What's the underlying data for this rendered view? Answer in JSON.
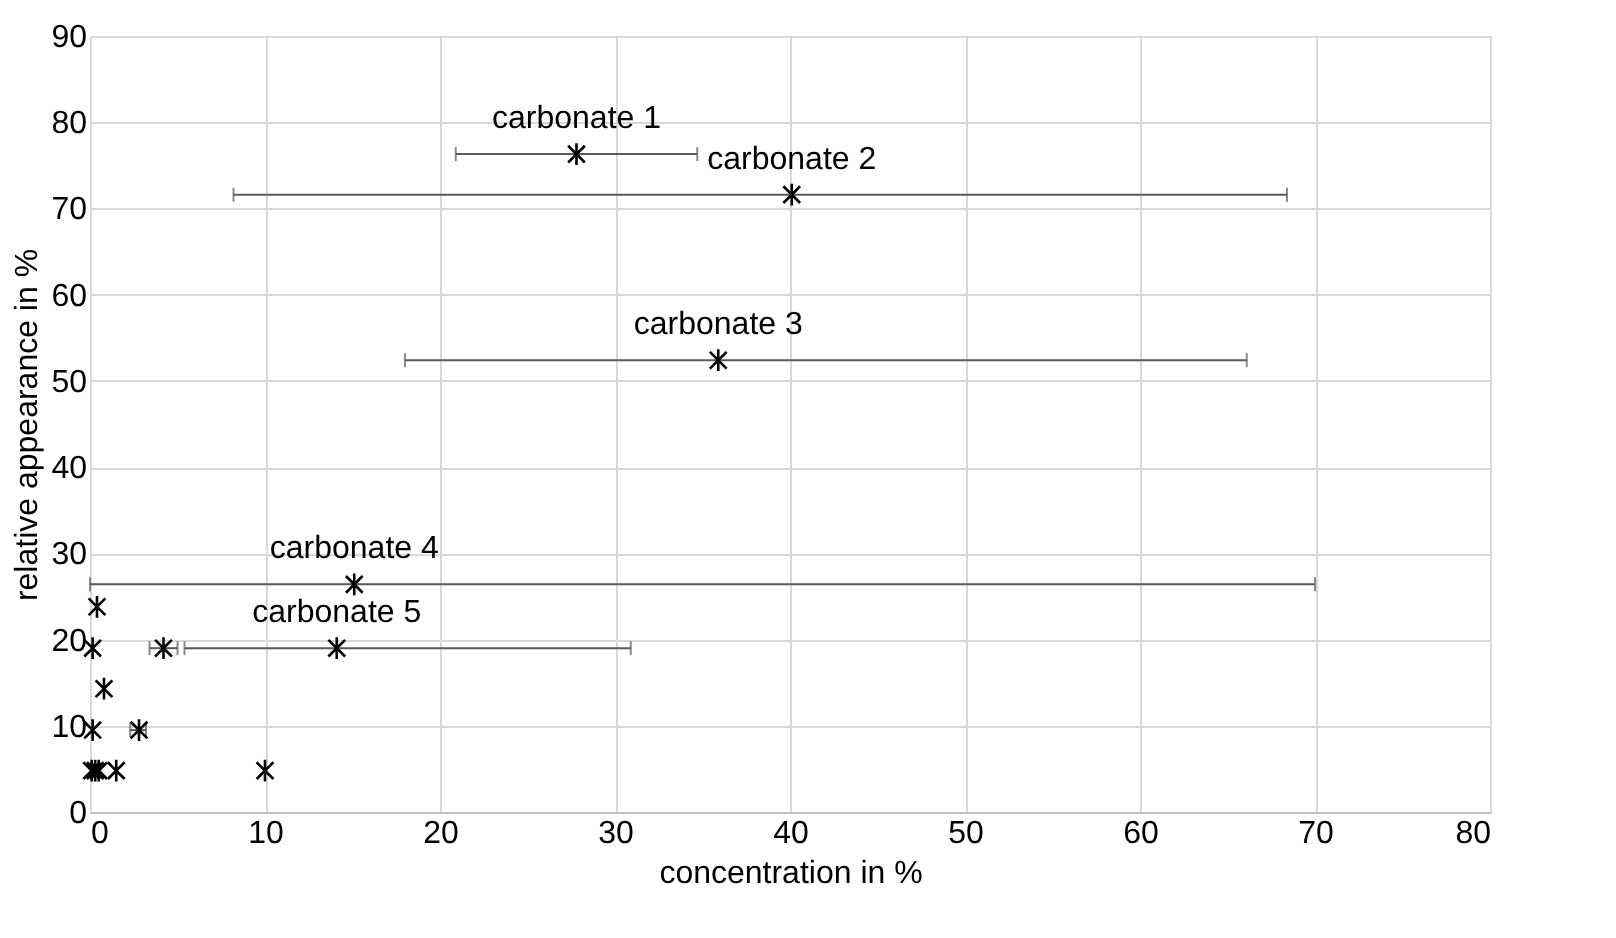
{
  "chart_data": {
    "type": "scatter",
    "xlabel": "concentration in %",
    "ylabel": "relative appearance in %",
    "series": [
      {
        "color": "#000000",
        "x": [
          27.8,
          40.1,
          35.9,
          15.1,
          14.1,
          0.4,
          0.15,
          4.2,
          0.8,
          0.15,
          2.8,
          0.1,
          0.3,
          0.5,
          1.5,
          10.0
        ],
        "values": [
          76.3,
          71.6,
          52.4,
          26.4,
          19.0,
          23.8,
          19.0,
          19.0,
          14.3,
          9.5,
          9.5,
          4.8,
          4.8,
          4.8,
          4.8,
          4.8
        ],
        "xerrors": [
          [
            20.9,
            34.7
          ],
          [
            8.2,
            68.4
          ],
          [
            18.0,
            66.1
          ],
          [
            0,
            70
          ],
          [
            5.4,
            30.9
          ],
          null,
          null,
          [
            3.4,
            5.0
          ],
          null,
          null,
          [
            2.3,
            3.2
          ],
          null,
          null,
          null,
          null,
          null
        ]
      }
    ],
    "annotations": [
      {
        "text": "carbonate 1",
        "x": 27.8,
        "y": 76.3
      },
      {
        "text": "carbonate 2",
        "x": 40.1,
        "y": 71.6
      },
      {
        "text": "carbonate 3",
        "x": 35.9,
        "y": 52.4
      },
      {
        "text": "carbonate 4",
        "x": 15.1,
        "y": 26.4
      },
      {
        "text": "carbonate 5",
        "x": 14.1,
        "y": 19.0
      }
    ],
    "xlim": [
      0,
      80
    ],
    "xticks": [
      0,
      10,
      20,
      30,
      40,
      50,
      60,
      70,
      80
    ],
    "ylim": [
      0,
      90
    ],
    "yticks": [
      0,
      10,
      20,
      30,
      40,
      50,
      60,
      70,
      80,
      90
    ],
    "grid": true,
    "marker": "cross"
  }
}
